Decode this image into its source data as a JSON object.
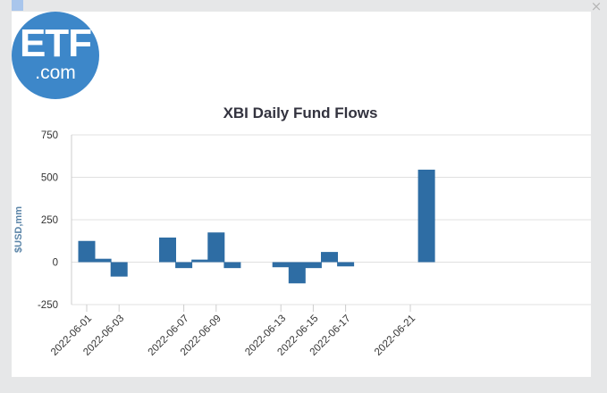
{
  "logo": {
    "main": "ETF",
    "sub": ".com"
  },
  "close_label": "×",
  "chart_data": {
    "type": "bar",
    "title": "XBI Daily Fund Flows",
    "ylabel": "$USD,mm",
    "xlabel": "",
    "ylim": [
      -250,
      750
    ],
    "yticks": [
      -250,
      0,
      250,
      500,
      750
    ],
    "grid": true,
    "legend": "none",
    "color": "#2e6da4",
    "categories": [
      "2022-06-01",
      "2022-06-02",
      "2022-06-03",
      "2022-06-06",
      "2022-06-07",
      "2022-06-08",
      "2022-06-09",
      "2022-06-10",
      "2022-06-13",
      "2022-06-14",
      "2022-06-15",
      "2022-06-16",
      "2022-06-17",
      "2022-06-21",
      "2022-06-22"
    ],
    "values": [
      125,
      20,
      -85,
      145,
      -35,
      15,
      175,
      -35,
      -30,
      -125,
      -35,
      60,
      -25,
      0,
      545
    ],
    "tick_labels": [
      "2022-06-01",
      "2022-06-03",
      "2022-06-07",
      "2022-06-09",
      "2022-06-13",
      "2022-06-15",
      "2022-06-17",
      "2022-06-21"
    ]
  }
}
